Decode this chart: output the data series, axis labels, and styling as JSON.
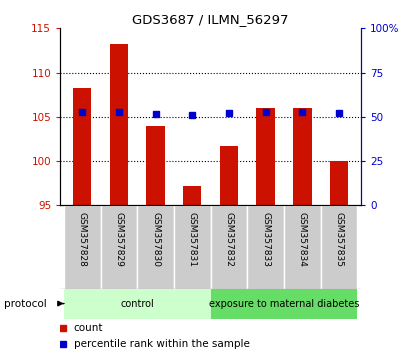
{
  "title": "GDS3687 / ILMN_56297",
  "samples": [
    "GSM357828",
    "GSM357829",
    "GSM357830",
    "GSM357831",
    "GSM357832",
    "GSM357833",
    "GSM357834",
    "GSM357835"
  ],
  "bar_values": [
    108.2,
    113.2,
    104.0,
    97.2,
    101.7,
    106.0,
    106.0,
    100.0
  ],
  "percentile_values": [
    53.0,
    53.0,
    51.5,
    51.0,
    52.0,
    53.0,
    53.0,
    52.0
  ],
  "bar_color": "#cc1100",
  "marker_color": "#0000cc",
  "ylim_left": [
    95,
    115
  ],
  "ylim_right": [
    0,
    100
  ],
  "yticks_left": [
    95,
    100,
    105,
    110,
    115
  ],
  "yticks_right": [
    0,
    25,
    50,
    75,
    100
  ],
  "ytick_labels_right": [
    "0",
    "25",
    "50",
    "75",
    "100%"
  ],
  "groups": [
    {
      "label": "control",
      "indices": [
        0,
        1,
        2,
        3
      ],
      "color": "#ccffcc"
    },
    {
      "label": "exposure to maternal diabetes",
      "indices": [
        4,
        5,
        6,
        7
      ],
      "color": "#66dd66"
    }
  ],
  "protocol_label": "protocol",
  "legend_count_label": "count",
  "legend_pct_label": "percentile rank within the sample",
  "grid_color": "#000000",
  "label_bg_color": "#cccccc",
  "background_color": "#ffffff",
  "bar_width": 0.5
}
